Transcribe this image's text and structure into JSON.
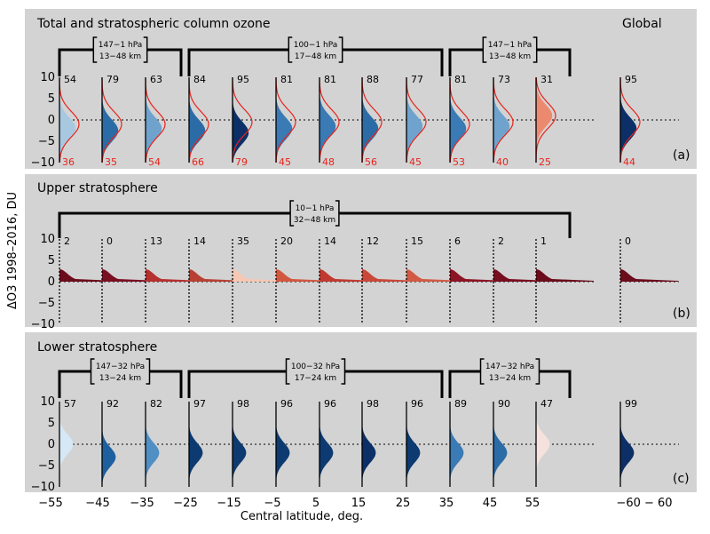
{
  "chart_data": {
    "type": "area",
    "ylabel": "ΔO3 1998–2016, DU",
    "xlabel": "Central latitude, deg.",
    "ylim": [
      -10,
      10
    ],
    "yticks": [
      "10",
      "5",
      "0",
      "−5",
      "−10"
    ],
    "zero_line": "dotted",
    "x_tick_labels": [
      "−55",
      "−45",
      "−35",
      "−25",
      "−15",
      "−5",
      "5",
      "15",
      "25",
      "35",
      "45",
      "55",
      "−60 − 60"
    ],
    "global_label": "Global",
    "panels": [
      {
        "title": "Total and stratospheric column ozone",
        "letter": "(a)",
        "brackets": [
          {
            "pressure": "147−1 hPa",
            "altitude": "13−48 km",
            "span": [
              "−55",
              "−35"
            ]
          },
          {
            "pressure": "100−1 hPa",
            "altitude": "17−48 km",
            "span": [
              "−25",
              "25"
            ]
          },
          {
            "pressure": "147−1 hPa",
            "altitude": "13−48 km",
            "span": [
              "35",
              "55"
            ]
          }
        ],
        "top_numbers": [
          "54",
          "79",
          "63",
          "84",
          "95",
          "81",
          "81",
          "88",
          "77",
          "81",
          "73",
          "31",
          "95"
        ],
        "bottom_numbers": [
          "36",
          "35",
          "54",
          "66",
          "79",
          "45",
          "48",
          "56",
          "45",
          "53",
          "40",
          "25",
          "44"
        ],
        "distribution_center_DU": [
          -2,
          -2.5,
          -2,
          -2.5,
          -3,
          -2,
          -1.5,
          -2,
          -1.5,
          -2,
          -1.5,
          1,
          -2
        ],
        "outline_center_DU": [
          -1,
          -1,
          -1,
          -1,
          -0.5,
          -0.5,
          -0.5,
          -0.5,
          -0.5,
          -1,
          -0.5,
          1,
          -0.5
        ],
        "fill_colors": [
          "#a8c8e0",
          "#2b6ca6",
          "#6fa3cd",
          "#2b6ca6",
          "#0b2f66",
          "#3a7ab5",
          "#3a7ab5",
          "#2b6ca6",
          "#6fa3cd",
          "#3a7ab5",
          "#6fa3cd",
          "#ec8a70",
          "#0b2f66"
        ],
        "outline_color": "#e8231c"
      },
      {
        "title": "Upper stratosphere",
        "letter": "(b)",
        "brackets": [
          {
            "pressure": "10−1 hPa",
            "altitude": "32−48 km",
            "span": [
              "−55",
              "55"
            ]
          }
        ],
        "top_numbers": [
          "2",
          "0",
          "13",
          "14",
          "35",
          "20",
          "14",
          "12",
          "15",
          "6",
          "2",
          "1",
          "0"
        ],
        "distribution_center_DU": [
          1.5,
          1.5,
          1.5,
          1.5,
          1,
          1.5,
          1.5,
          1.5,
          1.5,
          1.5,
          1.5,
          1.5,
          1
        ],
        "fill_colors": [
          "#6b0b1c",
          "#7a0f22",
          "#b5302f",
          "#b84032",
          "#f6c7b3",
          "#d2573f",
          "#c03a30",
          "#c9483a",
          "#d25a44",
          "#8c1424",
          "#780d20",
          "#6b0b1c",
          "#6b0b1c"
        ]
      },
      {
        "title": "Lower stratosphere",
        "letter": "(c)",
        "brackets": [
          {
            "pressure": "147−32 hPa",
            "altitude": "13−24 km",
            "span": [
              "−55",
              "−35"
            ]
          },
          {
            "pressure": "100−32 hPa",
            "altitude": "17−24 km",
            "span": [
              "−25",
              "25"
            ]
          },
          {
            "pressure": "147−32 hPa",
            "altitude": "13−24 km",
            "span": [
              "35",
              "55"
            ]
          }
        ],
        "top_numbers": [
          "57",
          "92",
          "82",
          "97",
          "98",
          "96",
          "96",
          "98",
          "96",
          "89",
          "90",
          "47",
          "99"
        ],
        "distribution_center_DU": [
          0,
          -3,
          -2,
          -2,
          -2,
          -2,
          -2,
          -2,
          -2,
          -2,
          -2,
          0,
          -2
        ],
        "fill_colors": [
          "#d6e8f5",
          "#1e5fa0",
          "#4f8fc4",
          "#0d3a70",
          "#0d3a70",
          "#0d3a70",
          "#0d3a70",
          "#0b2f66",
          "#0d3a70",
          "#3a7ab5",
          "#2b6ca6",
          "#f5e2dc",
          "#0b2f66"
        ]
      }
    ]
  }
}
